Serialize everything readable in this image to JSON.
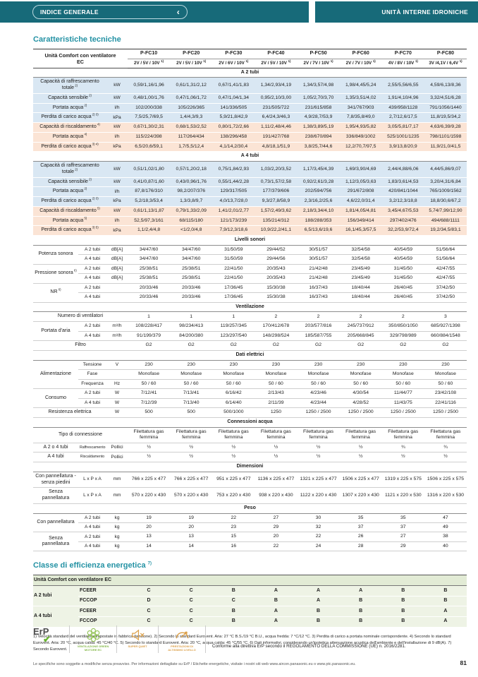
{
  "colors": {
    "teal": "#176a79",
    "accent": "#2492a4",
    "cool_row": "#d9e7f3",
    "heat_row": "#fbe4d5",
    "energy_row": "#eef3e5",
    "green": "#85b84a",
    "orange": "#dca049"
  },
  "header": {
    "back_label": "INDICE GENERALE",
    "chevron": "‹",
    "section_label": "UNITÀ INTERNE IDRONICHE"
  },
  "tech": {
    "title": "Caratteristiche tecniche"
  },
  "spec_table": {
    "header": {
      "label_lines": [
        "Unità Comfort con ventilatore",
        "EC"
      ],
      "models": [
        "P-FC10",
        "P-FC20",
        "P-FC30",
        "P-FC40",
        "P-FC50",
        "P-FC60",
        "P-FC70",
        "P-FC80"
      ],
      "speeds": [
        "2V / 5V / 10V",
        "2V / 5V / 10V",
        "2V / 6V / 10V",
        "2V / 5V / 10V",
        "2V / 7V / 10V",
        "2V / 7V / 10V",
        "4V / 8V / 10V",
        "3V /4,1V / 6,4V"
      ],
      "speed_sup": "1)"
    },
    "rows": [
      {
        "type": "section",
        "label": "A 2 tubi"
      },
      {
        "type": "data",
        "bg": "cool",
        "lspan": 2,
        "label": "Capacità di raffrescamento totale",
        "sup": "2)",
        "unit": "kW",
        "values": [
          "0,59/1,16/1,96",
          "0,61/1,31/2,12",
          "0,67/1,41/1,83",
          "1,34/2,93/4,19",
          "1,34/3,57/4,98",
          "1,98/4,45/5,24",
          "2,55/5,56/6,55",
          "4,59/6,13/8,36"
        ]
      },
      {
        "type": "data",
        "bg": "cool",
        "lspan": 2,
        "label": "Capacità sensibile",
        "sup": "2)",
        "unit": "kW",
        "values": [
          "0,48/1,00/1,76",
          "0,47/1,06/1,72",
          "0,47/1,04/1,34",
          "0,95/2,10/3,00",
          "1,05/2,70/3,70",
          "1,35/3,51/4,02",
          "1,91/4,10/4,96",
          "3,32/4,51/6,28"
        ]
      },
      {
        "type": "data",
        "bg": "cool",
        "lspan": 2,
        "label": "Portata acqua",
        "sup": "2)",
        "unit": "l/h",
        "values": [
          "102/200/338",
          "105/226/365",
          "141/336/505",
          "231/505/722",
          "231/615/858",
          "341/767/903",
          "439/958/1128",
          "791/1056/1440"
        ]
      },
      {
        "type": "data",
        "bg": "cool",
        "lspan": 2,
        "label": "Perdita di carico acqua",
        "sup": "2) 3)",
        "unit": "kPa",
        "values": [
          "7,5/25,7/69,5",
          "1,4/4,3/9,3",
          "5,9/21,8/42,9",
          "6,4/24,3/46,3",
          "4,9/28,7/53,9",
          "7,8/35,8/49,0",
          "2,7/12,6/17,5",
          "11,8/19,5/34,2"
        ]
      },
      {
        "type": "data",
        "bg": "heat",
        "lspan": 2,
        "label": "Capacità di riscaldamento",
        "sup": "4)",
        "unit": "kW",
        "values": [
          "0,67/1,30/2,31",
          "0,68/1,53/2,52",
          "0,80/1,72/2,66",
          "1,11/2,48/4,46",
          "1,38/3,89/5,19",
          "1,95/4,93/5,82",
          "3,05/5,81/7,17",
          "4,63/6,39/9,28"
        ]
      },
      {
        "type": "data",
        "bg": "heat",
        "lspan": 2,
        "label": "Portata acqua",
        "sup": "4)",
        "unit": "l/h",
        "values": [
          "115/224/398",
          "117/264/434",
          "138/296/458",
          "191/427/768",
          "238/670/894",
          "336/849/1002",
          "525/1001/1235",
          "798/1101/1598"
        ]
      },
      {
        "type": "data",
        "bg": "heat",
        "lspan": 2,
        "label": "Perdita di carico acqua",
        "sup": "3) 4)",
        "unit": "kPa",
        "values": [
          "6,5/20,6/59,1",
          "1,7/5,5/12,4",
          "4,1/14,2/30,4",
          "4,8/18,1/51,9",
          "3,8/25,7/44,6",
          "12,2/70,7/97,5",
          "3,9/13,8/20,9",
          "11,9/21,0/41,5"
        ]
      },
      {
        "type": "section",
        "label": "A 4 tubi"
      },
      {
        "type": "data",
        "bg": "cool",
        "lspan": 2,
        "label": "Capacità di raffrescamento totale",
        "sup": "2)",
        "unit": "kW",
        "values": [
          "0,51/1,02/1,80",
          "0,57/1,20/2,18",
          "0,75/1,84/2,93",
          "1,03/2,20/3,52",
          "1,17/3,45/4,39",
          "1,69/3,90/4,69",
          "2,44/4,88/6,06",
          "4,44/5,86/9,07"
        ]
      },
      {
        "type": "data",
        "bg": "cool",
        "lspan": 2,
        "label": "Capacità sensibile",
        "sup": "2)",
        "unit": "kW",
        "values": [
          "0,41/0,87/1,60",
          "0,43/0,96/1,76",
          "0,55/1,44/2,28",
          "0,73/1,57/2,58",
          "0,92/2,61/3,28",
          "1,12/3,05/3,63",
          "1,83/3,61/4,53",
          "3,20/4,31/6,84"
        ]
      },
      {
        "type": "data",
        "bg": "cool",
        "lspan": 2,
        "label": "Portata acqua",
        "sup": "2)",
        "unit": "l/h",
        "values": [
          "87,8/176/310",
          "98,2/207/376",
          "129/317/505",
          "177/379/606",
          "202/594/756",
          "291/672/808",
          "420/841/1044",
          "765/1009/1562"
        ]
      },
      {
        "type": "data",
        "bg": "cool",
        "lspan": 2,
        "label": "Perdita di carico acqua",
        "sup": "2) 3)",
        "unit": "kPa",
        "values": [
          "5,2/18,3/53,4",
          "1,3/3,8/9,7",
          "4,0/13,7/28,0",
          "9,3/27,8/58,9",
          "2,3/16,2/25,6",
          "4,6/22,0/31,4",
          "3,2/12,3/18,8",
          "18,8/30,6/67,2"
        ]
      },
      {
        "type": "data",
        "bg": "heat",
        "lspan": 2,
        "label": "Capacità di riscaldamento",
        "sup": "5)",
        "unit": "kW",
        "values": [
          "0,61/1,13/1,87",
          "0,79/1,33/2,09",
          "1,41/2,01/2,77",
          "1,57/2,49/3,62",
          "2,18/3,34/4,10",
          "1,81/4,05/4,81",
          "3,45/4,67/5,53",
          "5,74/7,99/12,90"
        ]
      },
      {
        "type": "data",
        "bg": "heat",
        "lspan": 2,
        "label": "Portata acqua",
        "sup": "5)",
        "unit": "l/h",
        "values": [
          "52,5/97,3/161",
          "68/115/180",
          "121/173/239",
          "135/214/312",
          "188/288/353",
          "156/349/414",
          "297/402/476",
          "494/688/1111"
        ]
      },
      {
        "type": "data",
        "bg": "heat",
        "lspan": 2,
        "label": "Perdita di carico acqua",
        "sup": "3) 5)",
        "unit": "kPa",
        "values": [
          "1,1/2,4/4,8",
          "<1/2,0/4,8",
          "7,9/12,3/18,6",
          "10,9/22,2/41,1",
          "6,5/13,6/19,6",
          "16,1/45,3/57,5",
          "32,2/53,9/72,4",
          "19,2/34,5/83,1"
        ]
      },
      {
        "type": "section",
        "label": "Livelli sonori"
      },
      {
        "type": "data",
        "label": "Potenza sonora",
        "rowspan": 2,
        "sub": "A 2 tubi",
        "unit": "dB[A]",
        "values": [
          "34/47/60",
          "34/47/60",
          "31/50/59",
          "29/44/52",
          "30/51/57",
          "32/54/58",
          "40/54/59",
          "51/56/64"
        ]
      },
      {
        "type": "data",
        "cont": true,
        "sub": "A 4 tubi",
        "unit": "dB[A]",
        "values": [
          "34/47/60",
          "34/47/60",
          "31/50/59",
          "29/44/56",
          "30/51/57",
          "32/54/58",
          "40/54/59",
          "51/56/64"
        ]
      },
      {
        "type": "data",
        "label": "Pressione sonora",
        "sup": "6)",
        "rowspan": 2,
        "sub": "A 2 tubi",
        "unit": "dB[A]",
        "values": [
          "25/38/51",
          "25/38/51",
          "22/41/50",
          "20/35/43",
          "21/42/48",
          "23/45/49",
          "31/45/50",
          "42/47/55"
        ]
      },
      {
        "type": "data",
        "cont": true,
        "sub": "A 4 tubi",
        "unit": "dB[A]",
        "values": [
          "25/38/51",
          "25/38/51",
          "22/41/50",
          "20/35/43",
          "21/42/48",
          "23/45/49",
          "31/45/50",
          "42/47/55"
        ]
      },
      {
        "type": "data",
        "label": "NR",
        "sup": "6)",
        "rowspan": 2,
        "sub": "A 2 tubi",
        "unit": "",
        "values": [
          "20/33/46",
          "20/33/46",
          "17/36/45",
          "15/30/38",
          "16/37/43",
          "18/40/44",
          "26/40/45",
          "37/42/50"
        ]
      },
      {
        "type": "data",
        "cont": true,
        "sub": "A 4 tubi",
        "unit": "",
        "values": [
          "20/33/46",
          "20/33/46",
          "17/36/45",
          "15/30/38",
          "16/37/43",
          "18/40/44",
          "26/40/45",
          "37/42/50"
        ]
      },
      {
        "type": "section",
        "label": "Ventilazione"
      },
      {
        "type": "data",
        "lspan": 3,
        "label": "Numero di ventilatori",
        "values": [
          "1",
          "1",
          "1",
          "2",
          "2",
          "2",
          "2",
          "3"
        ]
      },
      {
        "type": "data",
        "label": "Portata d'aria",
        "rowspan": 2,
        "sub": "A 2 tubi",
        "unit": "m³/h",
        "values": [
          "108/228/417",
          "98/234/413",
          "119/257/345",
          "170/412/678",
          "203/577/816",
          "245/737/912",
          "350/850/1050",
          "685/927/1398"
        ]
      },
      {
        "type": "data",
        "cont": true,
        "sub": "A 4 tubi",
        "unit": "m³/h",
        "values": [
          "91/199/379",
          "84/200/380",
          "123/297/540",
          "148/298/524",
          "185/587/755",
          "205/668/845",
          "329/798/989",
          "660/884/1548"
        ]
      },
      {
        "type": "data",
        "lspan": 3,
        "label": "Filtro",
        "values": [
          "G2",
          "G2",
          "G2",
          "G2",
          "G2",
          "G2",
          "G2",
          "G2"
        ]
      },
      {
        "type": "section",
        "label": "Dati elettrici"
      },
      {
        "type": "data",
        "label": "Alimentazione",
        "rowspan": 3,
        "sub": "Tensione",
        "unit": "V",
        "values": [
          "230",
          "230",
          "230",
          "230",
          "230",
          "230",
          "230",
          "230"
        ]
      },
      {
        "type": "data",
        "cont": true,
        "sub": "Fase",
        "unit": "",
        "values": [
          "Monofase",
          "Monofase",
          "Monofase",
          "Monofase",
          "Monofase",
          "Monofase",
          "Monofase",
          "Monofase"
        ]
      },
      {
        "type": "data",
        "cont": true,
        "sub": "Frequenza",
        "unit": "Hz",
        "values": [
          "50 / 60",
          "50 / 60",
          "50 / 60",
          "50 / 60",
          "50 / 60",
          "50 / 60",
          "50 / 60",
          "50 / 60"
        ]
      },
      {
        "type": "data",
        "label": "Consumo",
        "rowspan": 2,
        "sub": "A 2 tubi",
        "unit": "W",
        "values": [
          "7/12/41",
          "7/13/41",
          "6/16/42",
          "2/13/43",
          "4/23/46",
          "4/30/54",
          "11/44/77",
          "23/42/108"
        ]
      },
      {
        "type": "data",
        "cont": true,
        "sub": "A 4 tubi",
        "unit": "W",
        "values": [
          "7/12/39",
          "7/13/40",
          "6/14/40",
          "2/11/39",
          "4/23/44",
          "4/28/52",
          "11/43/75",
          "22/41/116"
        ]
      },
      {
        "type": "data",
        "lspan": 2,
        "label": "Resistenza elettrica",
        "unit": "W",
        "values": [
          "500",
          "500",
          "500/1000",
          "1250",
          "1250 / 2500",
          "1250 / 2500",
          "1250 / 2500",
          "1250 / 2500"
        ]
      },
      {
        "type": "section",
        "label": "Connessioni acqua"
      },
      {
        "type": "data",
        "lspan": 3,
        "label": "Tipo di connessione",
        "values": [
          "Filettatura gas femmina",
          "Filettatura gas femmina",
          "Filettatura gas femmina",
          "Filettatura gas femmina",
          "Filettatura gas femmina",
          "Filettatura gas femmina",
          "Filettatura gas femmina",
          "Filettatura gas femmina"
        ]
      },
      {
        "type": "data",
        "label": "A 2 o 4 tubi",
        "sub": "Raffrescamento",
        "subsmall": true,
        "unit": "Pollici",
        "values": [
          "½",
          "½",
          "½",
          "½",
          "½",
          "½",
          "¾",
          "¾"
        ]
      },
      {
        "type": "data",
        "label": "A 4 tubi",
        "sub": "Riscaldamento",
        "subsmall": true,
        "unit": "Pollici",
        "values": [
          "½",
          "½",
          "½",
          "½",
          "½",
          "½",
          "½",
          "½"
        ]
      },
      {
        "type": "section",
        "label": "Dimensioni"
      },
      {
        "type": "data",
        "label": "Con pannellatura - senza piedini",
        "sub": "L x P x A",
        "unit": "mm",
        "values": [
          "766 x 225 x 477",
          "766 x 225 x 477",
          "951 x 225 x 477",
          "1136 x 225 x 477",
          "1321 x 225 x 477",
          "1506 x 225 x 477",
          "1319 x 225 x 575",
          "1506 x 225 x 575"
        ]
      },
      {
        "type": "data",
        "label": "Senza pannellatura",
        "sub": "L x P x A",
        "unit": "mm",
        "values": [
          "570 x 220 x 430",
          "570 x 220 x 430",
          "753 x 220 x 430",
          "938 x 220 x 430",
          "1122 x 220 x 430",
          "1307 x 220 x 430",
          "1121 x 220 x 530",
          "1316 x 220 x 530"
        ]
      },
      {
        "type": "section",
        "label": "Peso"
      },
      {
        "type": "data",
        "label": "Con pannellatura",
        "rowspan": 2,
        "sub": "A 2 tubi",
        "unit": "kg",
        "values": [
          "19",
          "19",
          "22",
          "27",
          "30",
          "35",
          "35",
          "47"
        ]
      },
      {
        "type": "data",
        "cont": true,
        "sub": "A 4 tubi",
        "unit": "kg",
        "values": [
          "20",
          "20",
          "23",
          "29",
          "32",
          "37",
          "37",
          "49"
        ]
      },
      {
        "type": "data",
        "label": "Senza pannellatura",
        "rowspan": 2,
        "sub": "A 2 tubi",
        "unit": "kg",
        "values": [
          "13",
          "13",
          "15",
          "20",
          "22",
          "26",
          "27",
          "38"
        ]
      },
      {
        "type": "data",
        "cont": true,
        "sub": "A 4 tubi",
        "unit": "kg",
        "values": [
          "14",
          "14",
          "16",
          "22",
          "24",
          "28",
          "29",
          "40"
        ]
      }
    ]
  },
  "energy": {
    "title": "Classe di efficienza energetica",
    "title_sup": "7)",
    "header": "Unità Comfort con ventilatore EC",
    "rows": [
      {
        "label": "A 2 tubi",
        "rowspan": 2,
        "metric": "FCEER",
        "values": [
          "C",
          "C",
          "B",
          "A",
          "A",
          "A",
          "B",
          "B"
        ]
      },
      {
        "cont": true,
        "metric": "FCCOP",
        "values": [
          "D",
          "C",
          "C",
          "B",
          "A",
          "B",
          "B",
          "B"
        ]
      },
      {
        "label": "A 4 tubi",
        "rowspan": 2,
        "metric": "FCEER",
        "values": [
          "C",
          "C",
          "B",
          "A",
          "B",
          "B",
          "B",
          "A"
        ]
      },
      {
        "cont": true,
        "metric": "FCCOP",
        "values": [
          "C",
          "C",
          "B",
          "A",
          "B",
          "B",
          "B",
          "A"
        ]
      }
    ]
  },
  "footnotes": "1) Velocità standard del ventilatore impostate in fabbrica (tensione). 2) Secondo lo standard Eurovent. Aria: 27 °C B.S./19 °C B.U., acqua fredda: 7 °C/12 °C. 3) Perdita di carico a portata nominale corrispondente. 4) Secondo lo standard Eurovent. Aria: 20 °C, acqua calda: 45 °C/40 °C. 5) Secondo lo standard Eurovent. Aria: 20 °C, acqua calda: 45 °C/55 °C. 6) Dati informativi, considerando un'ipotetica attenuazione acustica dell'ambiente e dell'installazione di 9 dB(A). 7) Secondo Eurovent.",
  "badges": {
    "erp_label": "ErP",
    "erp_check": "✔",
    "items": [
      {
        "caption": "Ventilazione green motore EC"
      },
      {
        "caption": "Super quiet"
      },
      {
        "caption": "Prestazioni di altissimo livello"
      }
    ],
    "compliance": "Conforme alla direttiva ErP secondo il REGOLAMENTO DELLA COMMISSIONE (UE) n. 2016/2281."
  },
  "footer": {
    "disclaimer": "Le specifiche sono soggette a modifiche senza preavviso. Per informazioni dettagliate su ErP / Etichette energetiche, visitate i nostri siti web www.aircon.panasonic.eu o www.ptc.panasonic.eu.",
    "page": "81"
  }
}
